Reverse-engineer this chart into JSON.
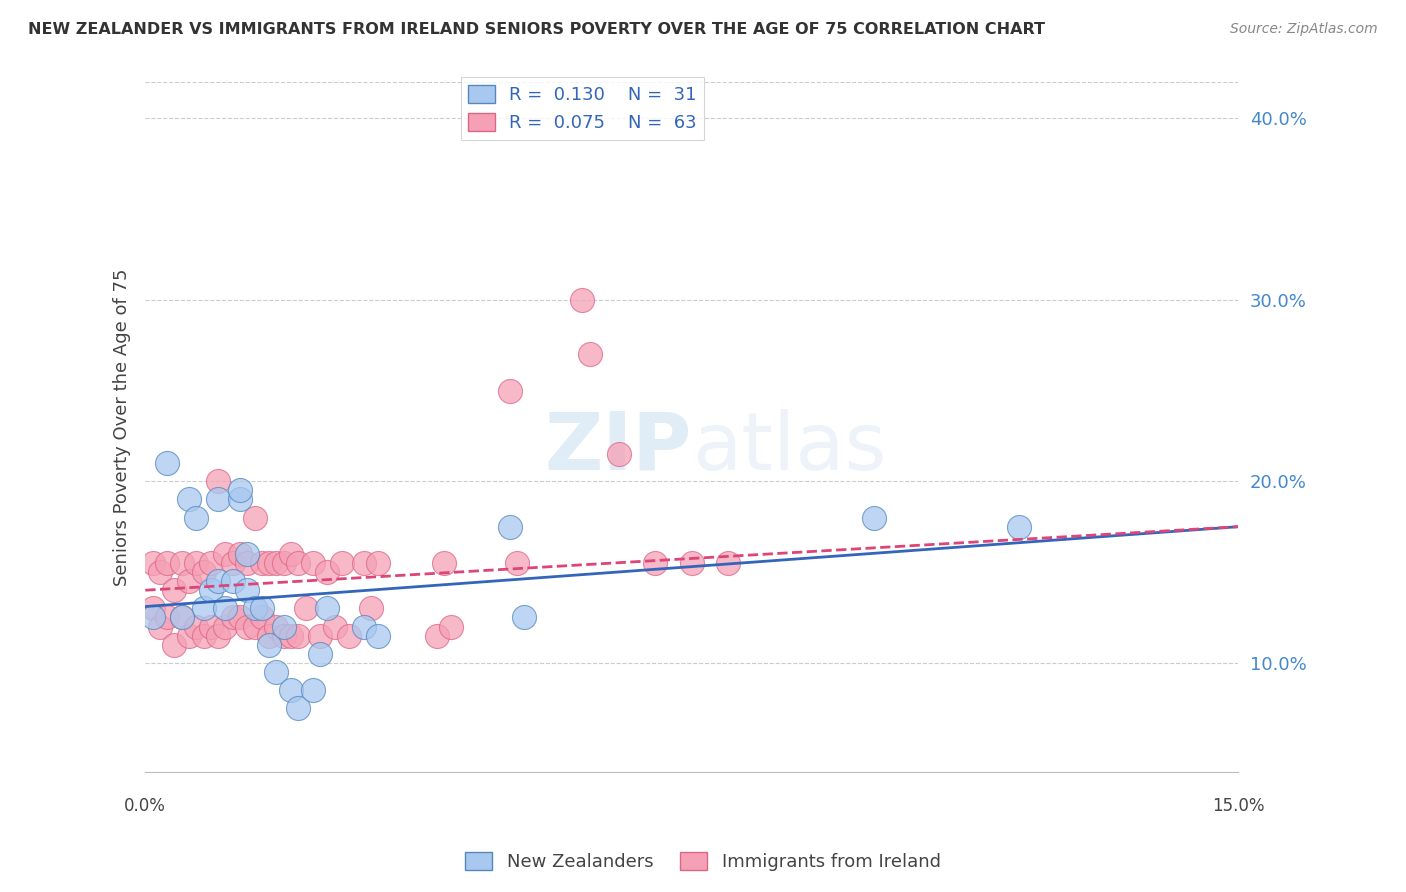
{
  "title": "NEW ZEALANDER VS IMMIGRANTS FROM IRELAND SENIORS POVERTY OVER THE AGE OF 75 CORRELATION CHART",
  "source": "Source: ZipAtlas.com",
  "ylabel": "Seniors Poverty Over the Age of 75",
  "ylabel_tick_vals": [
    0.1,
    0.2,
    0.3,
    0.4
  ],
  "xlim": [
    0.0,
    0.15
  ],
  "ylim": [
    0.04,
    0.42
  ],
  "legend_color1": "#a8c8f0",
  "legend_color2": "#f5a0b5",
  "nz_color": "#a8c8f0",
  "ire_color": "#f5a0b5",
  "nz_edge": "#5588bb",
  "ire_edge": "#dd6688",
  "grid_color": "#cccccc",
  "bg_color": "#ffffff",
  "line_nz_color": "#3366bb",
  "line_ire_color": "#dd4477",
  "bottom_label1": "New Zealanders",
  "bottom_label2": "Immigrants from Ireland",
  "nz_x": [
    0.001,
    0.003,
    0.005,
    0.006,
    0.007,
    0.008,
    0.009,
    0.01,
    0.01,
    0.011,
    0.012,
    0.013,
    0.013,
    0.014,
    0.014,
    0.015,
    0.016,
    0.017,
    0.018,
    0.019,
    0.02,
    0.021,
    0.023,
    0.024,
    0.025,
    0.03,
    0.032,
    0.05,
    0.052,
    0.1,
    0.12
  ],
  "nz_y": [
    0.125,
    0.21,
    0.125,
    0.19,
    0.18,
    0.13,
    0.14,
    0.145,
    0.19,
    0.13,
    0.145,
    0.19,
    0.195,
    0.14,
    0.16,
    0.13,
    0.13,
    0.11,
    0.095,
    0.12,
    0.085,
    0.075,
    0.085,
    0.105,
    0.13,
    0.12,
    0.115,
    0.175,
    0.125,
    0.18,
    0.175
  ],
  "ire_x": [
    0.001,
    0.001,
    0.002,
    0.002,
    0.003,
    0.003,
    0.004,
    0.004,
    0.005,
    0.005,
    0.006,
    0.006,
    0.007,
    0.007,
    0.008,
    0.008,
    0.009,
    0.009,
    0.01,
    0.01,
    0.011,
    0.011,
    0.012,
    0.012,
    0.013,
    0.013,
    0.014,
    0.014,
    0.015,
    0.015,
    0.016,
    0.016,
    0.017,
    0.017,
    0.018,
    0.018,
    0.019,
    0.019,
    0.02,
    0.02,
    0.021,
    0.021,
    0.022,
    0.023,
    0.024,
    0.025,
    0.026,
    0.027,
    0.028,
    0.03,
    0.031,
    0.032,
    0.04,
    0.041,
    0.042,
    0.05,
    0.051,
    0.06,
    0.061,
    0.065,
    0.07,
    0.075,
    0.08
  ],
  "ire_y": [
    0.13,
    0.155,
    0.12,
    0.15,
    0.125,
    0.155,
    0.11,
    0.14,
    0.125,
    0.155,
    0.115,
    0.145,
    0.12,
    0.155,
    0.115,
    0.15,
    0.12,
    0.155,
    0.115,
    0.2,
    0.12,
    0.16,
    0.125,
    0.155,
    0.125,
    0.16,
    0.12,
    0.155,
    0.12,
    0.18,
    0.125,
    0.155,
    0.115,
    0.155,
    0.12,
    0.155,
    0.115,
    0.155,
    0.115,
    0.16,
    0.115,
    0.155,
    0.13,
    0.155,
    0.115,
    0.15,
    0.12,
    0.155,
    0.115,
    0.155,
    0.13,
    0.155,
    0.115,
    0.155,
    0.12,
    0.25,
    0.155,
    0.3,
    0.27,
    0.215,
    0.155,
    0.155,
    0.155
  ],
  "nz_line_x0": 0.0,
  "nz_line_y0": 0.131,
  "nz_line_x1": 0.15,
  "nz_line_y1": 0.175,
  "ire_line_x0": 0.0,
  "ire_line_y0": 0.14,
  "ire_line_x1": 0.15,
  "ire_line_y1": 0.175
}
